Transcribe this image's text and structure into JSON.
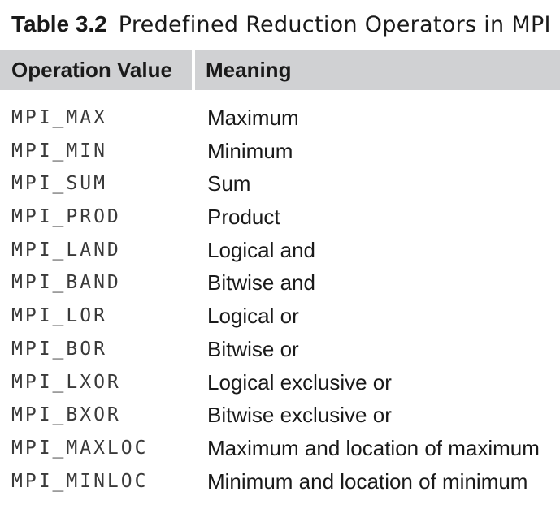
{
  "table": {
    "caption_label": "Table 3.2",
    "caption_text": "Predefined Reduction Operators in MPI",
    "headers": [
      "Operation Value",
      "Meaning"
    ],
    "rows": [
      {
        "op": "MPI_MAX",
        "meaning": "Maximum"
      },
      {
        "op": "MPI_MIN",
        "meaning": "Minimum"
      },
      {
        "op": "MPI_SUM",
        "meaning": "Sum"
      },
      {
        "op": "MPI_PROD",
        "meaning": "Product"
      },
      {
        "op": "MPI_LAND",
        "meaning": "Logical and"
      },
      {
        "op": "MPI_BAND",
        "meaning": "Bitwise and"
      },
      {
        "op": "MPI_LOR",
        "meaning": "Logical or"
      },
      {
        "op": "MPI_BOR",
        "meaning": "Bitwise or"
      },
      {
        "op": "MPI_LXOR",
        "meaning": "Logical exclusive or"
      },
      {
        "op": "MPI_BXOR",
        "meaning": "Bitwise exclusive or"
      },
      {
        "op": "MPI_MAXLOC",
        "meaning": "Maximum and location of maximum"
      },
      {
        "op": "MPI_MINLOC",
        "meaning": "Minimum and location of minimum"
      }
    ]
  }
}
